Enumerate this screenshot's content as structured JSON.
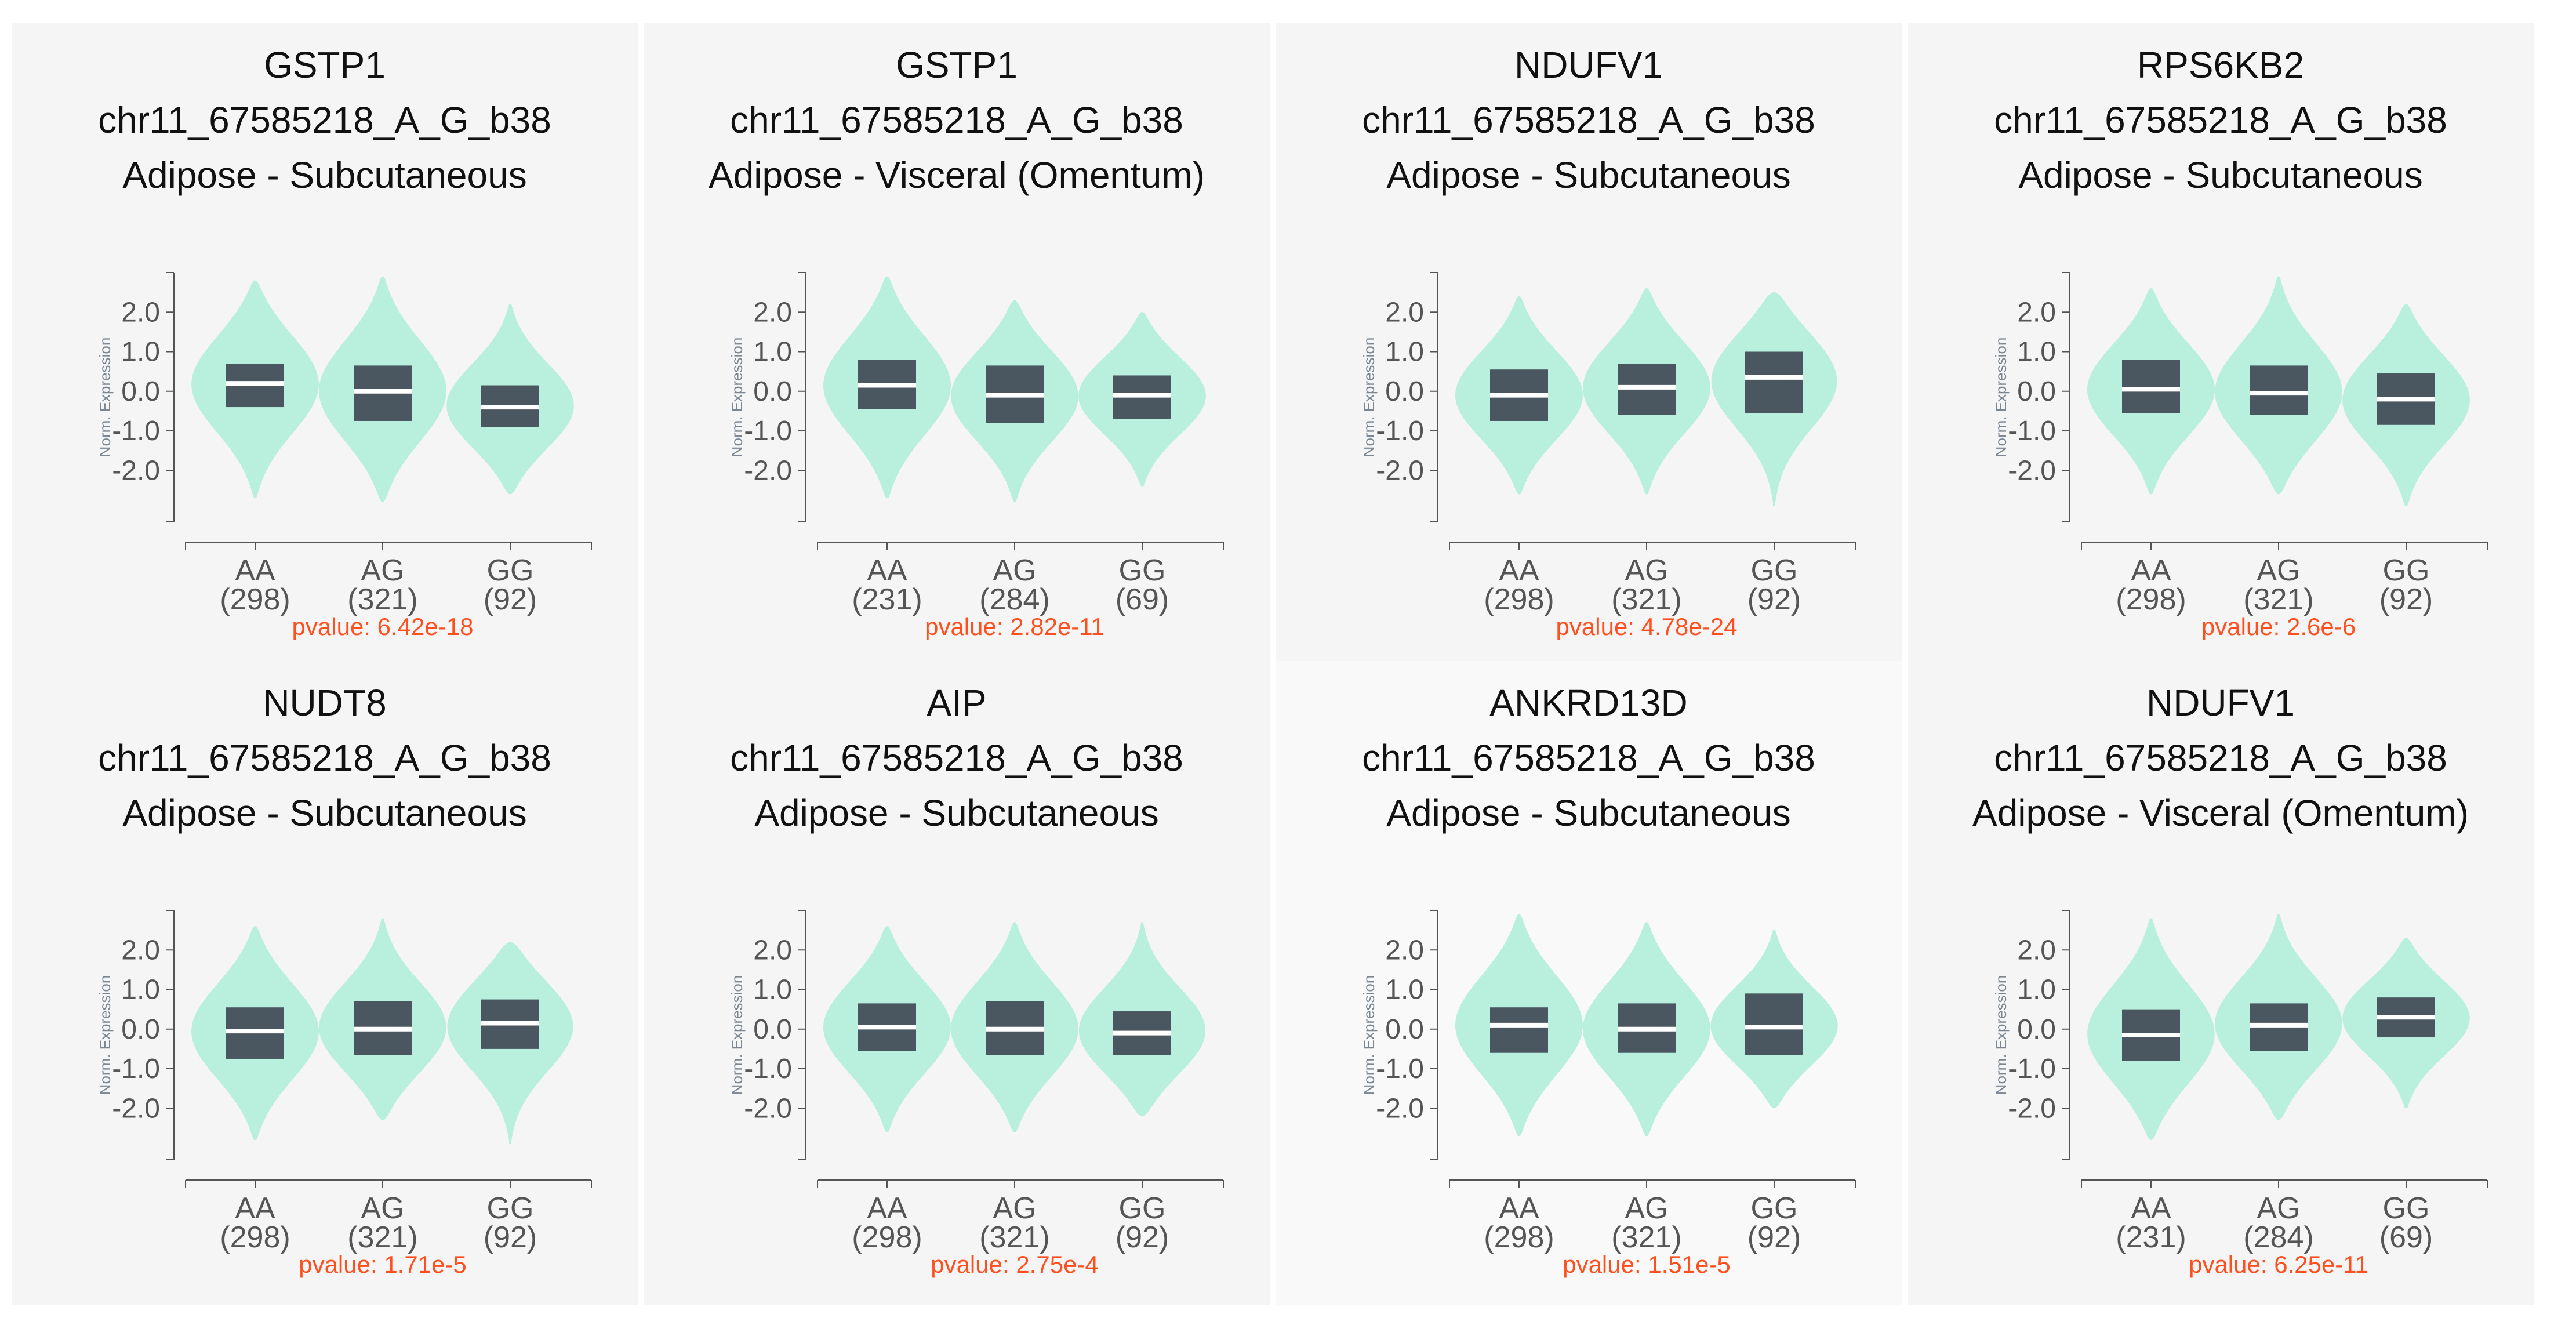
{
  "chart_data": [
    {
      "type": "violin",
      "title_lines": [
        "GSTP1",
        "chr11_67585218_A_G_b38",
        "Adipose - Subcutaneous"
      ],
      "ylabel": "Norm. Expression",
      "ytick_labels": [
        "2.0",
        "1.0",
        "0.0",
        "-1.0",
        "-2.0"
      ],
      "yticks": [
        2.0,
        1.0,
        0.0,
        -1.0,
        -2.0
      ],
      "ylim": [
        -3.3,
        3.0
      ],
      "categories": [
        "AA",
        "AG",
        "GG"
      ],
      "counts": [
        "(298)",
        "(321)",
        "(92)"
      ],
      "pvalue": "pvalue: 6.42e-18",
      "violins": [
        {
          "min": -2.7,
          "max": 2.8,
          "q1": -0.4,
          "median": 0.2,
          "q3": 0.7
        },
        {
          "min": -2.8,
          "max": 2.9,
          "q1": -0.75,
          "median": 0.0,
          "q3": 0.65
        },
        {
          "min": -2.6,
          "max": 2.2,
          "q1": -0.9,
          "median": -0.4,
          "q3": 0.15
        }
      ]
    },
    {
      "type": "violin",
      "title_lines": [
        "GSTP1",
        "chr11_67585218_A_G_b38",
        "Adipose - Visceral (Omentum)"
      ],
      "ylabel": "Norm. Expression",
      "ytick_labels": [
        "2.0",
        "1.0",
        "0.0",
        "-1.0",
        "-2.0"
      ],
      "yticks": [
        2.0,
        1.0,
        0.0,
        -1.0,
        -2.0
      ],
      "ylim": [
        -3.3,
        3.0
      ],
      "categories": [
        "AA",
        "AG",
        "GG"
      ],
      "counts": [
        "(231)",
        "(284)",
        "(69)"
      ],
      "pvalue": "pvalue: 2.82e-11",
      "violins": [
        {
          "min": -2.7,
          "max": 2.9,
          "q1": -0.45,
          "median": 0.15,
          "q3": 0.8
        },
        {
          "min": -2.8,
          "max": 2.3,
          "q1": -0.8,
          "median": -0.1,
          "q3": 0.65
        },
        {
          "min": -2.4,
          "max": 2.0,
          "q1": -0.7,
          "median": -0.1,
          "q3": 0.4
        }
      ]
    },
    {
      "type": "violin",
      "title_lines": [
        "NDUFV1",
        "chr11_67585218_A_G_b38",
        "Adipose - Subcutaneous"
      ],
      "ylabel": "Norm. Expression",
      "ytick_labels": [
        "2.0",
        "1.0",
        "0.0",
        "-1.0",
        "-2.0"
      ],
      "yticks": [
        2.0,
        1.0,
        0.0,
        -1.0,
        -2.0
      ],
      "ylim": [
        -3.3,
        3.0
      ],
      "categories": [
        "AA",
        "AG",
        "GG"
      ],
      "counts": [
        "(298)",
        "(321)",
        "(92)"
      ],
      "pvalue": "pvalue: 4.78e-24",
      "violins": [
        {
          "min": -2.6,
          "max": 2.4,
          "q1": -0.75,
          "median": -0.1,
          "q3": 0.55
        },
        {
          "min": -2.6,
          "max": 2.6,
          "q1": -0.6,
          "median": 0.1,
          "q3": 0.7
        },
        {
          "min": -2.9,
          "max": 2.5,
          "q1": -0.55,
          "median": 0.35,
          "q3": 1.0
        }
      ]
    },
    {
      "type": "violin",
      "title_lines": [
        "RPS6KB2",
        "chr11_67585218_A_G_b38",
        "Adipose - Subcutaneous"
      ],
      "ylabel": "Norm. Expression",
      "ytick_labels": [
        "2.0",
        "1.0",
        "0.0",
        "-1.0",
        "-2.0"
      ],
      "yticks": [
        2.0,
        1.0,
        0.0,
        -1.0,
        -2.0
      ],
      "ylim": [
        -3.3,
        3.0
      ],
      "categories": [
        "AA",
        "AG",
        "GG"
      ],
      "counts": [
        "(298)",
        "(321)",
        "(92)"
      ],
      "pvalue": "pvalue: 2.6e-6",
      "violins": [
        {
          "min": -2.6,
          "max": 2.6,
          "q1": -0.55,
          "median": 0.05,
          "q3": 0.8
        },
        {
          "min": -2.6,
          "max": 2.9,
          "q1": -0.6,
          "median": -0.05,
          "q3": 0.65
        },
        {
          "min": -2.9,
          "max": 2.2,
          "q1": -0.85,
          "median": -0.2,
          "q3": 0.45
        }
      ]
    },
    {
      "type": "violin",
      "title_lines": [
        "NUDT8",
        "chr11_67585218_A_G_b38",
        "Adipose - Subcutaneous"
      ],
      "ylabel": "Norm. Expression",
      "ytick_labels": [
        "2.0",
        "1.0",
        "0.0",
        "-1.0",
        "-2.0"
      ],
      "yticks": [
        2.0,
        1.0,
        0.0,
        -1.0,
        -2.0
      ],
      "ylim": [
        -3.3,
        3.0
      ],
      "categories": [
        "AA",
        "AG",
        "GG"
      ],
      "counts": [
        "(298)",
        "(321)",
        "(92)"
      ],
      "pvalue": "pvalue: 1.71e-5",
      "violins": [
        {
          "min": -2.8,
          "max": 2.6,
          "q1": -0.75,
          "median": -0.05,
          "q3": 0.55
        },
        {
          "min": -2.3,
          "max": 2.8,
          "q1": -0.65,
          "median": 0.0,
          "q3": 0.7
        },
        {
          "min": -2.9,
          "max": 2.2,
          "q1": -0.5,
          "median": 0.15,
          "q3": 0.75
        }
      ]
    },
    {
      "type": "violin",
      "title_lines": [
        "AIP",
        "chr11_67585218_A_G_b38",
        "Adipose - Subcutaneous"
      ],
      "ylabel": "Norm. Expression",
      "ytick_labels": [
        "2.0",
        "1.0",
        "0.0",
        "-1.0",
        "-2.0"
      ],
      "yticks": [
        2.0,
        1.0,
        0.0,
        -1.0,
        -2.0
      ],
      "ylim": [
        -3.3,
        3.0
      ],
      "categories": [
        "AA",
        "AG",
        "GG"
      ],
      "counts": [
        "(298)",
        "(321)",
        "(92)"
      ],
      "pvalue": "pvalue: 2.75e-4",
      "violins": [
        {
          "min": -2.6,
          "max": 2.6,
          "q1": -0.55,
          "median": 0.05,
          "q3": 0.65
        },
        {
          "min": -2.6,
          "max": 2.7,
          "q1": -0.65,
          "median": 0.0,
          "q3": 0.7
        },
        {
          "min": -2.2,
          "max": 2.7,
          "q1": -0.65,
          "median": -0.1,
          "q3": 0.45
        }
      ]
    },
    {
      "type": "violin",
      "title_lines": [
        "ANKRD13D",
        "chr11_67585218_A_G_b38",
        "Adipose - Subcutaneous"
      ],
      "ylabel": "Norm. Expression",
      "ytick_labels": [
        "2.0",
        "1.0",
        "0.0",
        "-1.0",
        "-2.0"
      ],
      "yticks": [
        2.0,
        1.0,
        0.0,
        -1.0,
        -2.0
      ],
      "ylim": [
        -3.3,
        3.0
      ],
      "categories": [
        "AA",
        "AG",
        "GG"
      ],
      "counts": [
        "(298)",
        "(321)",
        "(92)"
      ],
      "pvalue": "pvalue: 1.51e-5",
      "violins": [
        {
          "min": -2.7,
          "max": 2.9,
          "q1": -0.6,
          "median": 0.1,
          "q3": 0.55
        },
        {
          "min": -2.7,
          "max": 2.7,
          "q1": -0.6,
          "median": 0.0,
          "q3": 0.65
        },
        {
          "min": -2.0,
          "max": 2.5,
          "q1": -0.65,
          "median": 0.05,
          "q3": 0.9
        }
      ]
    },
    {
      "type": "violin",
      "title_lines": [
        "NDUFV1",
        "chr11_67585218_A_G_b38",
        "Adipose - Visceral (Omentum)"
      ],
      "ylabel": "Norm. Expression",
      "ytick_labels": [
        "2.0",
        "1.0",
        "0.0",
        "-1.0",
        "-2.0"
      ],
      "yticks": [
        2.0,
        1.0,
        0.0,
        -1.0,
        -2.0
      ],
      "ylim": [
        -3.3,
        3.0
      ],
      "categories": [
        "AA",
        "AG",
        "GG"
      ],
      "counts": [
        "(231)",
        "(284)",
        "(69)"
      ],
      "pvalue": "pvalue: 6.25e-11",
      "violins": [
        {
          "min": -2.8,
          "max": 2.8,
          "q1": -0.8,
          "median": -0.15,
          "q3": 0.5
        },
        {
          "min": -2.3,
          "max": 2.9,
          "q1": -0.55,
          "median": 0.1,
          "q3": 0.65
        },
        {
          "min": -2.0,
          "max": 2.3,
          "q1": -0.2,
          "median": 0.3,
          "q3": 0.8
        }
      ]
    }
  ]
}
